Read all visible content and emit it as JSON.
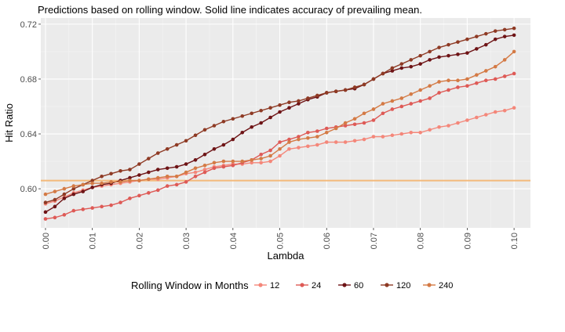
{
  "chart_data": {
    "type": "line",
    "title": "Predictions based on rolling window. Solid line indicates accuracy of prevailing mean.",
    "xlabel": "Lambda",
    "ylabel": "Hit Ratio",
    "xlim": [
      -0.001,
      0.1035
    ],
    "ylim": [
      0.5715,
      0.7245
    ],
    "x_ticks": [
      0.0,
      0.01,
      0.02,
      0.03,
      0.04,
      0.05,
      0.06,
      0.07,
      0.08,
      0.09,
      0.1
    ],
    "x_tick_labels": [
      "0.00",
      "0.01",
      "0.02",
      "0.03",
      "0.04",
      "0.05",
      "0.06",
      "0.07",
      "0.08",
      "0.09",
      "0.10"
    ],
    "y_ticks": [
      0.6,
      0.64,
      0.68,
      0.72
    ],
    "y_tick_labels": [
      "0.60",
      "0.64",
      "0.68",
      "0.72"
    ],
    "grid": true,
    "legend_position": "bottom",
    "legend_title": "Rolling Window in Months",
    "reference_line": {
      "y": 0.606,
      "color": "#f4b97a"
    },
    "x": [
      0.0,
      0.002,
      0.004,
      0.006,
      0.008,
      0.01,
      0.012,
      0.014,
      0.016,
      0.018,
      0.02,
      0.022,
      0.024,
      0.026,
      0.028,
      0.03,
      0.032,
      0.034,
      0.036,
      0.038,
      0.04,
      0.042,
      0.044,
      0.046,
      0.048,
      0.05,
      0.052,
      0.054,
      0.056,
      0.058,
      0.06,
      0.062,
      0.064,
      0.066,
      0.068,
      0.07,
      0.072,
      0.074,
      0.076,
      0.078,
      0.08,
      0.082,
      0.084,
      0.086,
      0.088,
      0.09,
      0.092,
      0.094,
      0.096,
      0.098,
      0.1
    ],
    "series": [
      {
        "name": "12",
        "color": "#f4877a",
        "values": [
          0.589,
          0.591,
          0.594,
          0.597,
          0.599,
          0.601,
          0.602,
          0.603,
          0.604,
          0.605,
          0.606,
          0.607,
          0.607,
          0.608,
          0.609,
          0.611,
          0.612,
          0.614,
          0.616,
          0.617,
          0.618,
          0.618,
          0.619,
          0.619,
          0.62,
          0.624,
          0.629,
          0.63,
          0.631,
          0.632,
          0.634,
          0.634,
          0.634,
          0.635,
          0.636,
          0.638,
          0.638,
          0.639,
          0.64,
          0.641,
          0.641,
          0.643,
          0.645,
          0.646,
          0.648,
          0.65,
          0.652,
          0.654,
          0.656,
          0.657,
          0.659
        ]
      },
      {
        "name": "24",
        "color": "#de5a56",
        "values": [
          0.578,
          0.579,
          0.581,
          0.584,
          0.585,
          0.586,
          0.587,
          0.588,
          0.59,
          0.593,
          0.595,
          0.597,
          0.599,
          0.602,
          0.603,
          0.605,
          0.609,
          0.612,
          0.615,
          0.616,
          0.617,
          0.619,
          0.621,
          0.625,
          0.628,
          0.634,
          0.636,
          0.638,
          0.641,
          0.642,
          0.644,
          0.645,
          0.646,
          0.647,
          0.648,
          0.65,
          0.655,
          0.658,
          0.66,
          0.662,
          0.664,
          0.666,
          0.67,
          0.672,
          0.674,
          0.675,
          0.677,
          0.679,
          0.68,
          0.682,
          0.684
        ]
      },
      {
        "name": "60",
        "color": "#6e1416",
        "values": [
          0.583,
          0.587,
          0.593,
          0.596,
          0.598,
          0.601,
          0.603,
          0.604,
          0.606,
          0.608,
          0.61,
          0.612,
          0.614,
          0.615,
          0.616,
          0.618,
          0.621,
          0.625,
          0.629,
          0.632,
          0.636,
          0.641,
          0.645,
          0.648,
          0.652,
          0.656,
          0.659,
          0.662,
          0.665,
          0.667,
          0.67,
          0.671,
          0.672,
          0.673,
          0.676,
          0.68,
          0.684,
          0.686,
          0.688,
          0.689,
          0.691,
          0.694,
          0.696,
          0.697,
          0.698,
          0.699,
          0.702,
          0.705,
          0.709,
          0.711,
          0.712
        ]
      },
      {
        "name": "120",
        "color": "#8e3a24",
        "values": [
          0.59,
          0.592,
          0.596,
          0.6,
          0.603,
          0.606,
          0.609,
          0.611,
          0.613,
          0.614,
          0.618,
          0.622,
          0.626,
          0.629,
          0.632,
          0.635,
          0.639,
          0.643,
          0.646,
          0.649,
          0.651,
          0.653,
          0.655,
          0.657,
          0.659,
          0.661,
          0.663,
          0.664,
          0.666,
          0.668,
          0.67,
          0.671,
          0.672,
          0.674,
          0.676,
          0.68,
          0.684,
          0.688,
          0.691,
          0.694,
          0.697,
          0.7,
          0.703,
          0.705,
          0.707,
          0.709,
          0.711,
          0.713,
          0.715,
          0.716,
          0.717
        ]
      },
      {
        "name": "240",
        "color": "#d47a45",
        "values": [
          0.596,
          0.598,
          0.6,
          0.602,
          0.603,
          0.604,
          0.604,
          0.605,
          0.605,
          0.606,
          0.606,
          0.607,
          0.608,
          0.609,
          0.609,
          0.612,
          0.615,
          0.617,
          0.619,
          0.62,
          0.62,
          0.62,
          0.621,
          0.622,
          0.624,
          0.629,
          0.634,
          0.636,
          0.637,
          0.638,
          0.641,
          0.644,
          0.648,
          0.651,
          0.655,
          0.658,
          0.662,
          0.664,
          0.666,
          0.669,
          0.672,
          0.675,
          0.678,
          0.679,
          0.679,
          0.68,
          0.683,
          0.686,
          0.689,
          0.694,
          0.7
        ]
      }
    ]
  }
}
